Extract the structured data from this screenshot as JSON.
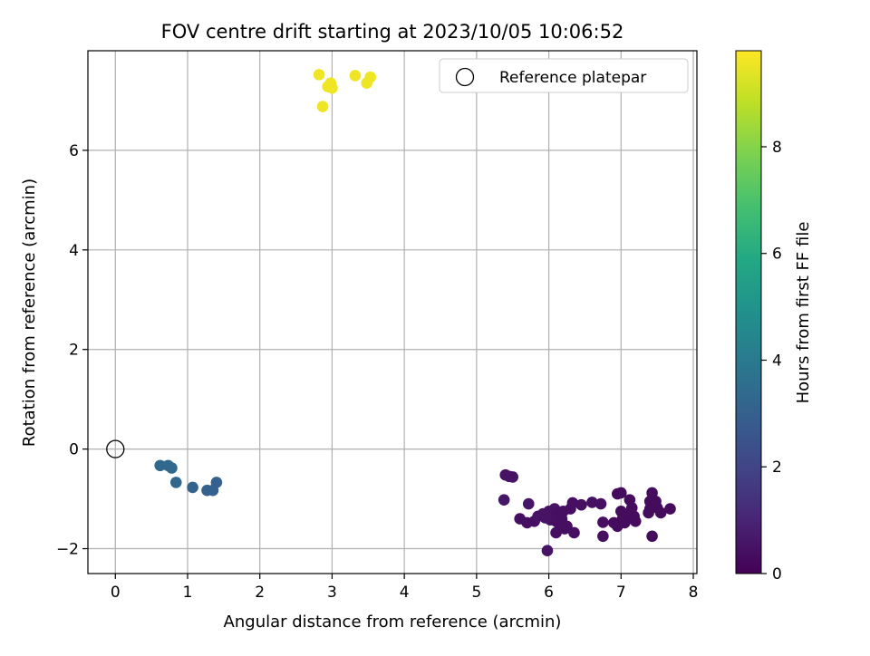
{
  "chart_data": {
    "type": "scatter",
    "title": "FOV centre drift starting at 2023/10/05 10:06:52",
    "xlabel": "Angular distance from reference (arcmin)",
    "ylabel": "Rotation from reference (arcmin)",
    "xlim": [
      -0.38,
      8.05
    ],
    "ylim": [
      -2.5,
      8.0
    ],
    "xticks": [
      0,
      1,
      2,
      3,
      4,
      5,
      6,
      7,
      8
    ],
    "yticks": [
      -2,
      0,
      2,
      4,
      6
    ],
    "xtick_labels": [
      "0",
      "1",
      "2",
      "3",
      "4",
      "5",
      "6",
      "7",
      "8"
    ],
    "ytick_labels": [
      "−2",
      "0",
      "2",
      "4",
      "6"
    ],
    "grid": true,
    "legend": {
      "position": "top-right",
      "entries": [
        "Reference platepar"
      ]
    },
    "reference_point": {
      "name": "Reference platepar",
      "x": 0,
      "y": 0,
      "marker": "open-circle"
    },
    "colorbar": {
      "label": "Hours from first FF file",
      "colormap": "viridis",
      "range": [
        0,
        9.8
      ],
      "ticks": [
        0,
        2,
        4,
        6,
        8
      ],
      "tick_labels": [
        "0",
        "2",
        "4",
        "6",
        "8"
      ]
    },
    "points": [
      {
        "x": 5.4,
        "y": -0.52,
        "h": 0.5
      },
      {
        "x": 5.45,
        "y": -0.55,
        "h": 0.5
      },
      {
        "x": 5.5,
        "y": -0.56,
        "h": 0.5
      },
      {
        "x": 5.38,
        "y": -1.02,
        "h": 0.6
      },
      {
        "x": 5.72,
        "y": -1.1,
        "h": 0.6
      },
      {
        "x": 5.6,
        "y": -1.4,
        "h": 0.4
      },
      {
        "x": 5.7,
        "y": -1.48,
        "h": 0.4
      },
      {
        "x": 5.8,
        "y": -1.45,
        "h": 0.4
      },
      {
        "x": 5.85,
        "y": -1.35,
        "h": 0.5
      },
      {
        "x": 5.92,
        "y": -1.3,
        "h": 0.5
      },
      {
        "x": 5.95,
        "y": -1.38,
        "h": 0.5
      },
      {
        "x": 6.0,
        "y": -1.25,
        "h": 0.5
      },
      {
        "x": 6.02,
        "y": -1.42,
        "h": 0.5
      },
      {
        "x": 6.05,
        "y": -1.35,
        "h": 0.5
      },
      {
        "x": 6.08,
        "y": -1.2,
        "h": 0.5
      },
      {
        "x": 6.1,
        "y": -1.45,
        "h": 0.4
      },
      {
        "x": 6.12,
        "y": -1.3,
        "h": 0.4
      },
      {
        "x": 6.15,
        "y": -1.52,
        "h": 0.4
      },
      {
        "x": 6.18,
        "y": -1.4,
        "h": 0.4
      },
      {
        "x": 6.2,
        "y": -1.25,
        "h": 0.4
      },
      {
        "x": 6.22,
        "y": -1.6,
        "h": 0.4
      },
      {
        "x": 6.25,
        "y": -1.55,
        "h": 0.4
      },
      {
        "x": 6.1,
        "y": -1.68,
        "h": 0.4
      },
      {
        "x": 6.3,
        "y": -1.2,
        "h": 0.4
      },
      {
        "x": 6.33,
        "y": -1.08,
        "h": 0.4
      },
      {
        "x": 6.35,
        "y": -1.68,
        "h": 0.4
      },
      {
        "x": 6.45,
        "y": -1.12,
        "h": 0.4
      },
      {
        "x": 6.6,
        "y": -1.07,
        "h": 0.4
      },
      {
        "x": 6.72,
        "y": -1.1,
        "h": 0.4
      },
      {
        "x": 6.75,
        "y": -1.47,
        "h": 0.4
      },
      {
        "x": 6.75,
        "y": -1.75,
        "h": 0.4
      },
      {
        "x": 6.9,
        "y": -1.48,
        "h": 0.3
      },
      {
        "x": 6.95,
        "y": -0.9,
        "h": 0.3
      },
      {
        "x": 6.95,
        "y": -1.55,
        "h": 0.3
      },
      {
        "x": 7.0,
        "y": -0.88,
        "h": 0.3
      },
      {
        "x": 7.0,
        "y": -1.25,
        "h": 0.3
      },
      {
        "x": 7.02,
        "y": -1.4,
        "h": 0.3
      },
      {
        "x": 7.05,
        "y": -1.48,
        "h": 0.3
      },
      {
        "x": 7.08,
        "y": -1.3,
        "h": 0.3
      },
      {
        "x": 7.1,
        "y": -1.4,
        "h": 0.3
      },
      {
        "x": 7.12,
        "y": -1.02,
        "h": 0.3
      },
      {
        "x": 7.15,
        "y": -1.18,
        "h": 0.3
      },
      {
        "x": 7.18,
        "y": -1.35,
        "h": 0.3
      },
      {
        "x": 7.2,
        "y": -1.45,
        "h": 0.3
      },
      {
        "x": 7.38,
        "y": -1.28,
        "h": 0.3
      },
      {
        "x": 7.4,
        "y": -1.2,
        "h": 0.3
      },
      {
        "x": 7.4,
        "y": -1.05,
        "h": 0.3
      },
      {
        "x": 7.43,
        "y": -0.88,
        "h": 0.3
      },
      {
        "x": 7.45,
        "y": -1.15,
        "h": 0.3
      },
      {
        "x": 7.48,
        "y": -1.05,
        "h": 0.3
      },
      {
        "x": 7.5,
        "y": -1.18,
        "h": 0.3
      },
      {
        "x": 7.55,
        "y": -1.28,
        "h": 0.3
      },
      {
        "x": 7.68,
        "y": -1.2,
        "h": 0.3
      },
      {
        "x": 7.43,
        "y": -1.75,
        "h": 0.3
      },
      {
        "x": 5.98,
        "y": -2.04,
        "h": 0.5
      },
      {
        "x": 0.62,
        "y": -0.33,
        "h": 3.3
      },
      {
        "x": 0.73,
        "y": -0.33,
        "h": 3.3
      },
      {
        "x": 0.78,
        "y": -0.38,
        "h": 3.3
      },
      {
        "x": 0.84,
        "y": -0.67,
        "h": 3.2
      },
      {
        "x": 1.07,
        "y": -0.77,
        "h": 3.1
      },
      {
        "x": 1.27,
        "y": -0.83,
        "h": 3.0
      },
      {
        "x": 1.35,
        "y": -0.83,
        "h": 3.0
      },
      {
        "x": 1.4,
        "y": -0.67,
        "h": 3.0
      },
      {
        "x": 2.82,
        "y": 7.52,
        "h": 9.6
      },
      {
        "x": 2.94,
        "y": 7.28,
        "h": 9.6
      },
      {
        "x": 2.98,
        "y": 7.35,
        "h": 9.6
      },
      {
        "x": 3.0,
        "y": 7.25,
        "h": 9.6
      },
      {
        "x": 2.87,
        "y": 6.88,
        "h": 9.6
      },
      {
        "x": 3.32,
        "y": 7.5,
        "h": 9.6
      },
      {
        "x": 3.48,
        "y": 7.35,
        "h": 9.6
      },
      {
        "x": 3.53,
        "y": 7.47,
        "h": 9.6
      }
    ]
  }
}
